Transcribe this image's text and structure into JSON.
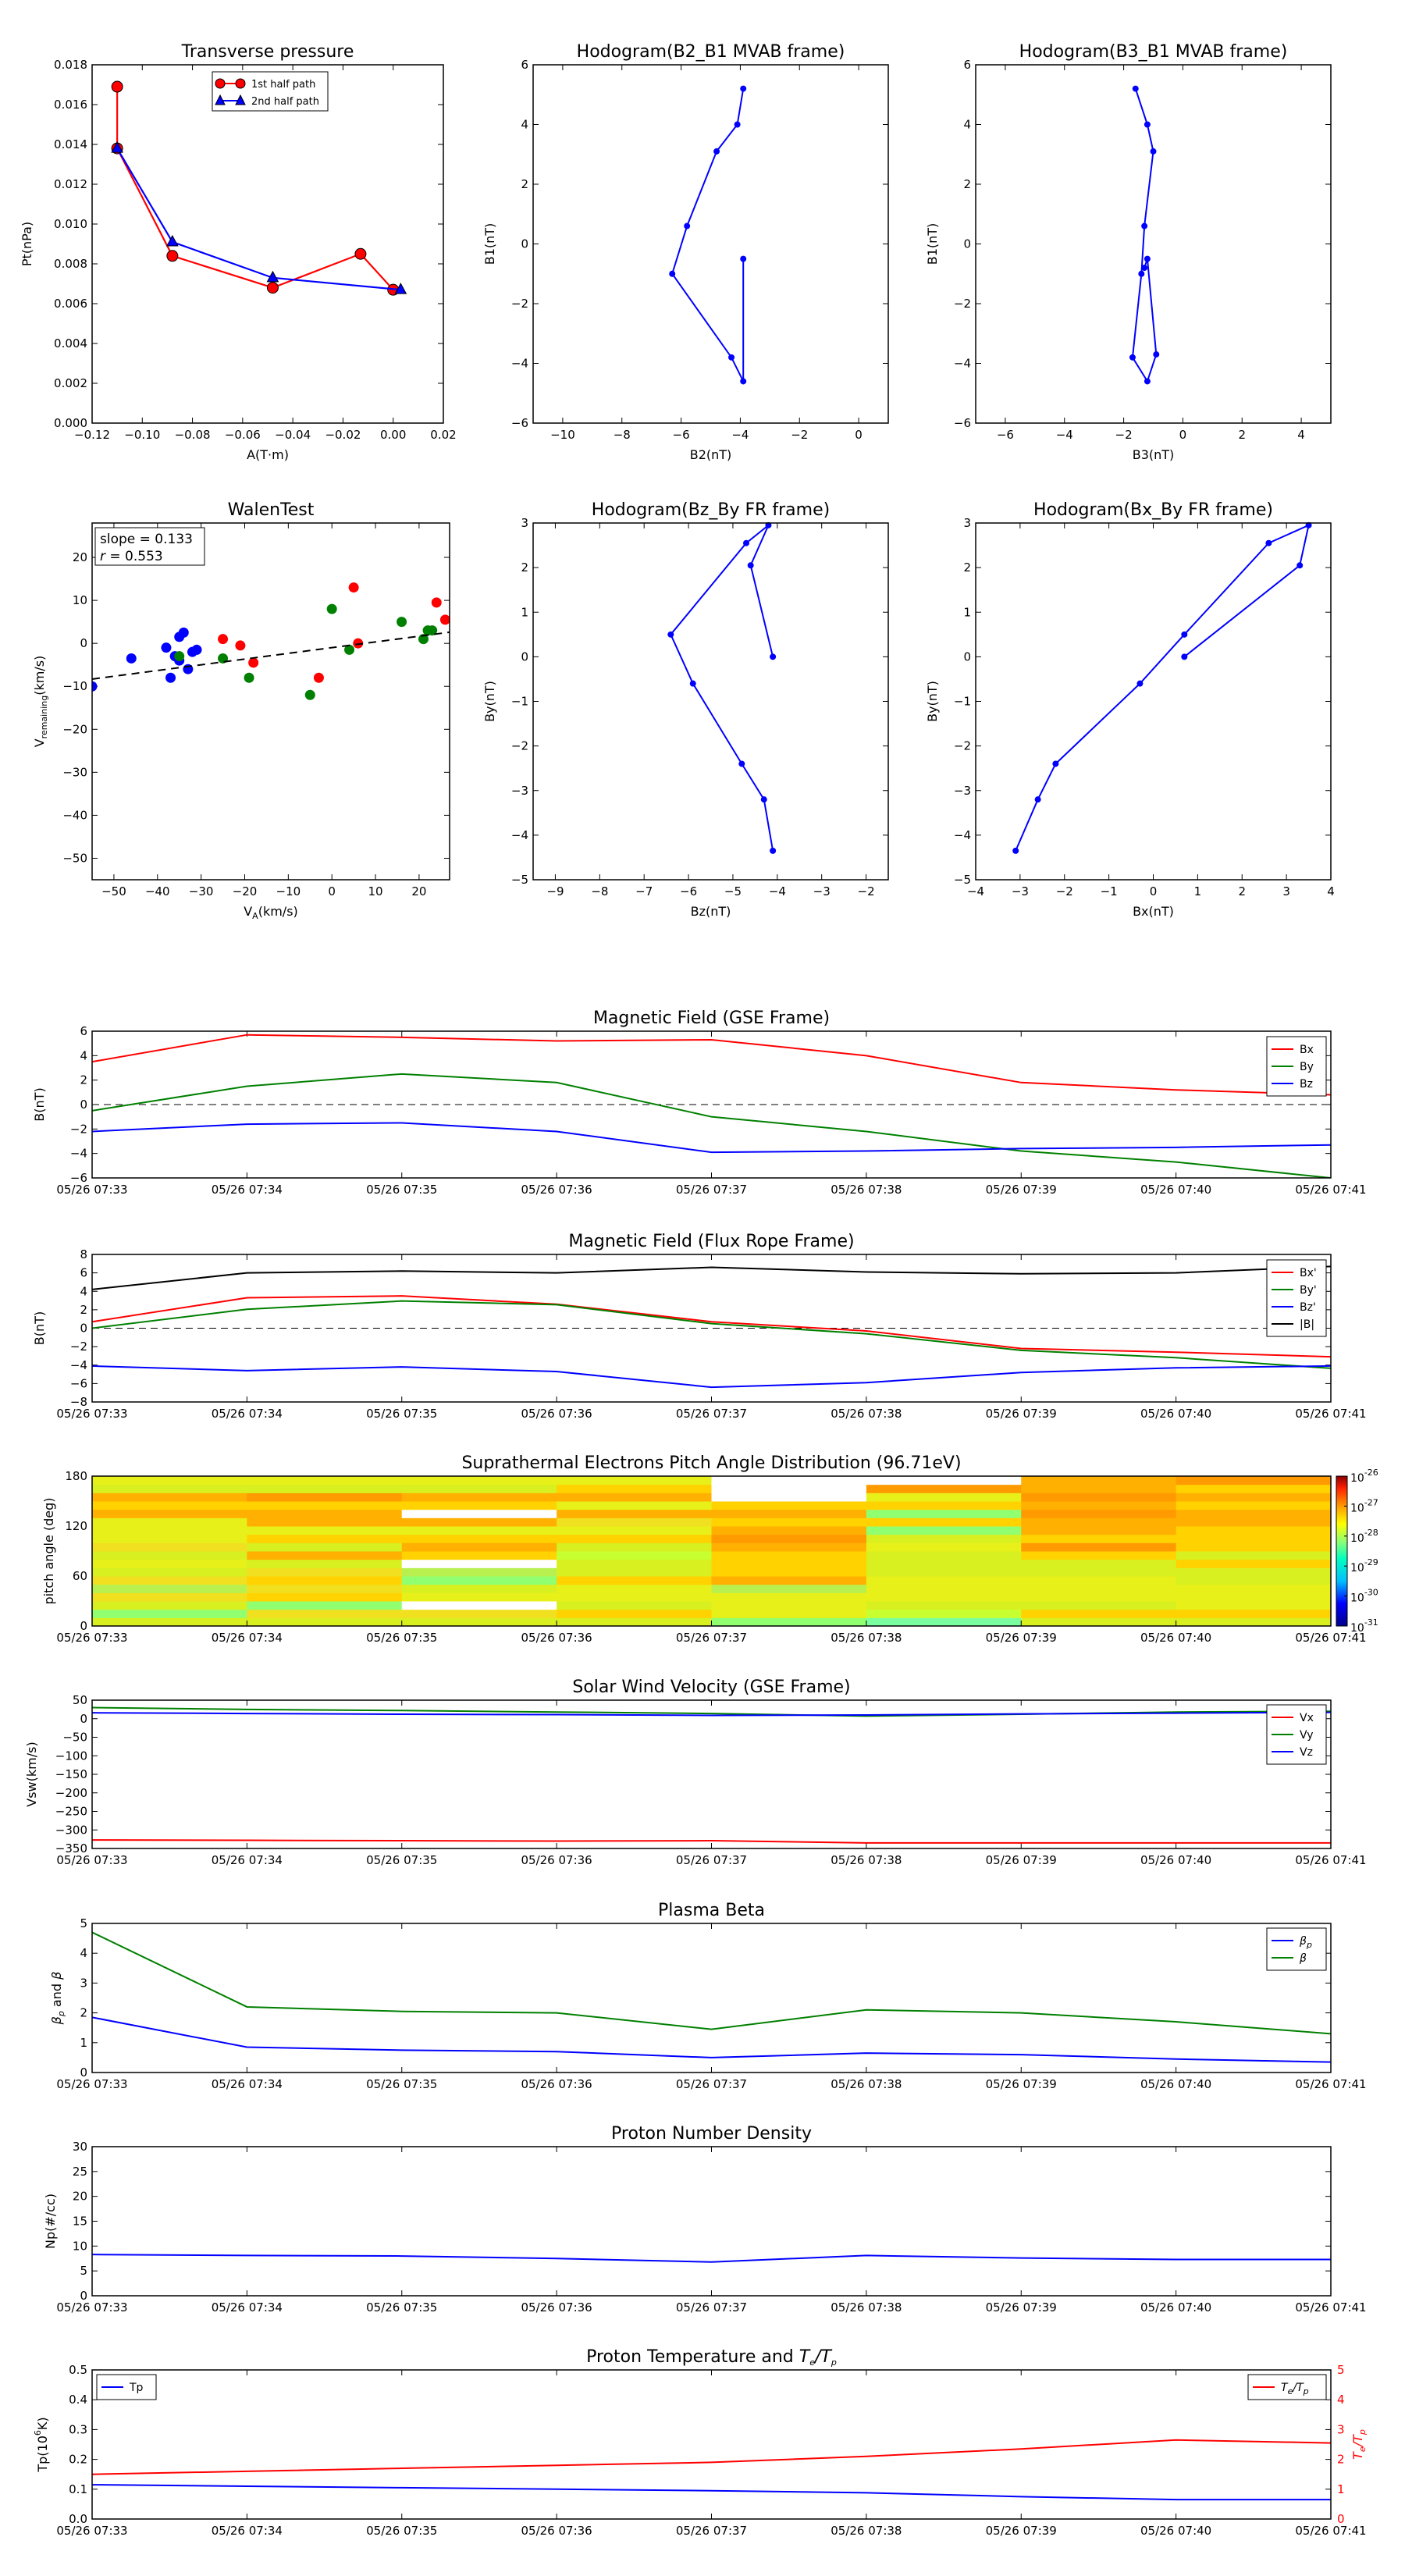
{
  "times": [
    "05/26 07:33",
    "05/26 07:34",
    "05/26 07:35",
    "05/26 07:36",
    "05/26 07:37",
    "05/26 07:38",
    "05/26 07:39",
    "05/26 07:40",
    "05/26 07:41"
  ],
  "colors": {
    "red": "#ff0000",
    "green": "#008000",
    "blue": "#0000ff",
    "black": "#000000"
  },
  "chart_data": [
    {
      "id": "transverse-pressure",
      "type": "line",
      "title": "Transverse pressure",
      "xlabel": "A(T·m)",
      "ylabel": "Pt(nPa)",
      "xlim": [
        -0.12,
        0.02
      ],
      "ylim": [
        0,
        0.018
      ],
      "xticks": [
        -0.12,
        -0.1,
        -0.08,
        -0.06,
        -0.04,
        -0.02,
        0.0,
        0.02
      ],
      "xtick_labels": [
        "−0.12",
        "−0.10",
        "−0.08",
        "−0.06",
        "−0.04",
        "−0.02",
        "0.00",
        "0.02"
      ],
      "yticks": [
        0,
        0.002,
        0.004,
        0.006,
        0.008,
        0.01,
        0.012,
        0.014,
        0.016,
        0.018
      ],
      "ytick_labels": [
        "0.000",
        "0.002",
        "0.004",
        "0.006",
        "0.008",
        "0.010",
        "0.012",
        "0.014",
        "0.016",
        "0.018"
      ],
      "legend": "top-center",
      "series": [
        {
          "name": "1st half path",
          "color": "#ff0000",
          "marker": "circle",
          "x": [
            0.0,
            -0.013,
            -0.048,
            -0.088,
            -0.11,
            -0.11
          ],
          "y": [
            0.0067,
            0.0085,
            0.0068,
            0.0084,
            0.0138,
            0.0169
          ]
        },
        {
          "name": "2nd half path",
          "color": "#0000ff",
          "marker": "triangle",
          "x": [
            -0.11,
            -0.088,
            -0.048,
            0.003
          ],
          "y": [
            0.0138,
            0.0091,
            0.0073,
            0.0067
          ]
        }
      ]
    },
    {
      "id": "hodogram-b2-b1",
      "type": "line",
      "title": "Hodogram(B2_B1 MVAB frame)",
      "xlabel": "B2(nT)",
      "ylabel": "B1(nT)",
      "xlim": [
        -11,
        1
      ],
      "ylim": [
        -6,
        6
      ],
      "xticks": [
        -10,
        -8,
        -6,
        -4,
        -2,
        0
      ],
      "xtick_labels": [
        "−10",
        "−8",
        "−6",
        "−4",
        "−2",
        "0"
      ],
      "yticks": [
        -6,
        -4,
        -2,
        0,
        2,
        4,
        6
      ],
      "ytick_labels": [
        "−6",
        "−4",
        "−2",
        "0",
        "2",
        "4",
        "6"
      ],
      "series": [
        {
          "color": "#0000ff",
          "marker": "dot",
          "x": [
            -3.9,
            -4.1,
            -4.8,
            -5.8,
            -6.3,
            -4.3,
            -3.9,
            -3.9
          ],
          "y": [
            5.2,
            4.0,
            3.1,
            0.6,
            -1.0,
            -3.8,
            -4.6,
            -0.5
          ]
        }
      ]
    },
    {
      "id": "hodogram-b3-b1",
      "type": "line",
      "title": "Hodogram(B3_B1 MVAB frame)",
      "xlabel": "B3(nT)",
      "ylabel": "B1(nT)",
      "xlim": [
        -7,
        5
      ],
      "ylim": [
        -6,
        6
      ],
      "xticks": [
        -6,
        -4,
        -2,
        0,
        2,
        4
      ],
      "xtick_labels": [
        "−6",
        "−4",
        "−2",
        "0",
        "2",
        "4"
      ],
      "yticks": [
        -6,
        -4,
        -2,
        0,
        2,
        4,
        6
      ],
      "ytick_labels": [
        "−6",
        "−4",
        "−2",
        "0",
        "2",
        "4",
        "6"
      ],
      "series": [
        {
          "color": "#0000ff",
          "marker": "dot",
          "x": [
            -1.6,
            -1.2,
            -1.0,
            -1.3,
            -1.4,
            -1.7,
            -1.2,
            -0.9,
            -1.2,
            -1.3
          ],
          "y": [
            5.2,
            4.0,
            3.1,
            0.6,
            -1.0,
            -3.8,
            -4.6,
            -3.7,
            -0.5,
            -0.8
          ]
        }
      ]
    },
    {
      "id": "walen-test",
      "type": "scatter",
      "title": "WalenTest",
      "xlabel": "V_A(km/s)",
      "ylabel": "V_remaining(km/s)",
      "annotation": [
        "slope = 0.133",
        "r = 0.553"
      ],
      "xlim": [
        -55,
        27
      ],
      "ylim": [
        -55,
        28
      ],
      "xticks": [
        -50,
        -40,
        -30,
        -20,
        -10,
        0,
        10,
        20
      ],
      "xtick_labels": [
        "−50",
        "−40",
        "−30",
        "−20",
        "−10",
        "0",
        "10",
        "20"
      ],
      "yticks": [
        -50,
        -40,
        -30,
        -20,
        -10,
        0,
        10,
        20
      ],
      "ytick_labels": [
        "−50",
        "−40",
        "−30",
        "−20",
        "−10",
        "0",
        "10",
        "20"
      ],
      "fit_line": {
        "slope": 0.133,
        "intercept": -1.0
      },
      "series": [
        {
          "color": "#0000ff",
          "x": [
            -55,
            -46,
            -38,
            -37,
            -36,
            -35,
            -34,
            -33,
            -32,
            -31,
            -35
          ],
          "y": [
            -10,
            -3.5,
            -1,
            -8,
            -3,
            1.5,
            2.5,
            -6,
            -2,
            -1.5,
            -4
          ]
        },
        {
          "color": "#008000",
          "x": [
            -35,
            -25,
            -19,
            -5,
            0,
            4,
            16,
            21,
            22,
            23
          ],
          "y": [
            -3,
            -3.5,
            -8,
            -12,
            8,
            -1.5,
            5,
            1,
            3,
            3
          ]
        },
        {
          "color": "#ff0000",
          "x": [
            -25,
            -21,
            -18,
            -3,
            5,
            6,
            24,
            26
          ],
          "y": [
            1,
            -0.5,
            -4.5,
            -8,
            13,
            0,
            9.5,
            5.5
          ]
        }
      ]
    },
    {
      "id": "hodogram-bz-by",
      "type": "line",
      "title": "Hodogram(Bz_By FR frame)",
      "xlabel": "Bz(nT)",
      "ylabel": "By(nT)",
      "xlim": [
        -9.5,
        -1.5
      ],
      "ylim": [
        -5,
        3
      ],
      "xticks": [
        -9,
        -8,
        -7,
        -6,
        -5,
        -4,
        -3,
        -2
      ],
      "xtick_labels": [
        "−9",
        "−8",
        "−7",
        "−6",
        "−5",
        "−4",
        "−3",
        "−2"
      ],
      "yticks": [
        -5,
        -4,
        -3,
        -2,
        -1,
        0,
        1,
        2,
        3
      ],
      "ytick_labels": [
        "−5",
        "−4",
        "−3",
        "−2",
        "−1",
        "0",
        "1",
        "2",
        "3"
      ],
      "series": [
        {
          "color": "#0000ff",
          "marker": "dot",
          "x": [
            -4.1,
            -4.6,
            -4.2,
            -4.7,
            -6.4,
            -5.9,
            -4.8,
            -4.3,
            -4.1
          ],
          "y": [
            0.0,
            2.05,
            2.95,
            2.55,
            0.5,
            -0.6,
            -2.4,
            -3.2,
            -4.35
          ]
        }
      ]
    },
    {
      "id": "hodogram-bx-by",
      "type": "line",
      "title": "Hodogram(Bx_By FR frame)",
      "xlabel": "Bx(nT)",
      "ylabel": "By(nT)",
      "xlim": [
        -4,
        4
      ],
      "ylim": [
        -5,
        3
      ],
      "xticks": [
        -4,
        -3,
        -2,
        -1,
        0,
        1,
        2,
        3,
        4
      ],
      "xtick_labels": [
        "−4",
        "−3",
        "−2",
        "−1",
        "0",
        "1",
        "2",
        "3",
        "4"
      ],
      "yticks": [
        -5,
        -4,
        -3,
        -2,
        -1,
        0,
        1,
        2,
        3
      ],
      "ytick_labels": [
        "−5",
        "−4",
        "−3",
        "−2",
        "−1",
        "0",
        "1",
        "2",
        "3"
      ],
      "series": [
        {
          "color": "#0000ff",
          "marker": "dot",
          "x": [
            0.7,
            3.3,
            3.5,
            2.6,
            0.7,
            -0.3,
            -2.2,
            -2.6,
            -3.1
          ],
          "y": [
            0.0,
            2.05,
            2.95,
            2.55,
            0.5,
            -0.6,
            -2.4,
            -3.2,
            -4.35
          ]
        }
      ]
    },
    {
      "id": "mag-gse",
      "type": "line",
      "title": "Magnetic Field (GSE Frame)",
      "ylabel": "B(nT)",
      "ylim": [
        -6,
        6
      ],
      "yticks": [
        -6,
        -4,
        -2,
        0,
        2,
        4,
        6
      ],
      "ytick_labels": [
        "−6",
        "−4",
        "−2",
        "0",
        "2",
        "4",
        "6"
      ],
      "zero_line": true,
      "legend": "top-right",
      "series": [
        {
          "name": "Bx",
          "color": "#ff0000",
          "values": [
            3.5,
            5.7,
            5.5,
            5.2,
            5.3,
            4.0,
            1.8,
            1.2,
            0.8
          ]
        },
        {
          "name": "By",
          "color": "#008000",
          "values": [
            -0.5,
            1.5,
            2.5,
            1.8,
            -1.0,
            -2.2,
            -3.8,
            -4.7,
            -6.0
          ]
        },
        {
          "name": "Bz",
          "color": "#0000ff",
          "values": [
            -2.2,
            -1.6,
            -1.5,
            -2.2,
            -3.9,
            -3.8,
            -3.6,
            -3.5,
            -3.3
          ]
        }
      ]
    },
    {
      "id": "mag-fr",
      "type": "line",
      "title": "Magnetic Field (Flux Rope Frame)",
      "ylabel": "B(nT)",
      "ylim": [
        -8,
        8
      ],
      "yticks": [
        -8,
        -6,
        -4,
        -2,
        0,
        2,
        4,
        6,
        8
      ],
      "ytick_labels": [
        "−8",
        "−6",
        "−4",
        "−2",
        "0",
        "2",
        "4",
        "6",
        "8"
      ],
      "zero_line": true,
      "legend": "top-right",
      "series": [
        {
          "name": "Bx'",
          "color": "#ff0000",
          "values": [
            0.7,
            3.3,
            3.5,
            2.6,
            0.7,
            -0.3,
            -2.2,
            -2.6,
            -3.1
          ]
        },
        {
          "name": "By'",
          "color": "#008000",
          "values": [
            0.0,
            2.05,
            2.95,
            2.55,
            0.5,
            -0.6,
            -2.4,
            -3.2,
            -4.35
          ]
        },
        {
          "name": "Bz'",
          "color": "#0000ff",
          "values": [
            -4.1,
            -4.6,
            -4.2,
            -4.7,
            -6.4,
            -5.9,
            -4.8,
            -4.3,
            -4.1
          ]
        },
        {
          "name": "|B|",
          "color": "#000000",
          "values": [
            4.2,
            6.0,
            6.2,
            6.0,
            6.6,
            6.1,
            5.9,
            6.0,
            6.7
          ]
        }
      ]
    },
    {
      "id": "pad",
      "type": "heatmap",
      "title": "Suprathermal Electrons Pitch Angle Distribution (96.71eV)",
      "ylabel": "pitch angle (deg)",
      "ylim": [
        0,
        180
      ],
      "yticks": [
        0,
        60,
        120,
        180
      ],
      "ytick_labels": [
        "0",
        "60",
        "120",
        "180"
      ],
      "colorbar": {
        "ticks": [
          "10^-26",
          "10^-27",
          "10^-28",
          "10^-29",
          "10^-30",
          "10^-31"
        ]
      }
    },
    {
      "id": "sw-velocity",
      "type": "line",
      "title": "Solar Wind Velocity (GSE Frame)",
      "ylabel": "Vsw(km/s)",
      "ylim": [
        -350,
        50
      ],
      "yticks": [
        -350,
        -300,
        -250,
        -200,
        -150,
        -100,
        -50,
        0,
        50
      ],
      "ytick_labels": [
        "−350",
        "−300",
        "−250",
        "−200",
        "−150",
        "−100",
        "−50",
        "0",
        "50"
      ],
      "legend": "top-right",
      "series": [
        {
          "name": "Vx",
          "color": "#ff0000",
          "values": [
            -327,
            -328,
            -329,
            -330,
            -329,
            -335,
            -335,
            -335,
            -335
          ]
        },
        {
          "name": "Vy",
          "color": "#008000",
          "values": [
            30,
            25,
            22,
            18,
            14,
            7,
            12,
            18,
            20
          ]
        },
        {
          "name": "Vz",
          "color": "#0000ff",
          "values": [
            16,
            14,
            12,
            11,
            9,
            10,
            13,
            15,
            17
          ]
        }
      ]
    },
    {
      "id": "plasma-beta",
      "type": "line",
      "title": "Plasma Beta",
      "ylabel": "β_p and β",
      "ylim": [
        0,
        5
      ],
      "yticks": [
        0,
        1,
        2,
        3,
        4,
        5
      ],
      "ytick_labels": [
        "0",
        "1",
        "2",
        "3",
        "4",
        "5"
      ],
      "legend": "top-right",
      "series": [
        {
          "name": "β_p",
          "color": "#0000ff",
          "values": [
            1.85,
            0.85,
            0.75,
            0.7,
            0.5,
            0.65,
            0.6,
            0.45,
            0.35
          ]
        },
        {
          "name": "β",
          "color": "#008000",
          "values": [
            4.7,
            2.2,
            2.05,
            2.0,
            1.45,
            2.1,
            2.0,
            1.7,
            1.3
          ]
        }
      ]
    },
    {
      "id": "proton-density",
      "type": "line",
      "title": "Proton Number Density",
      "ylabel": "Np(#/cc)",
      "ylim": [
        0,
        30
      ],
      "yticks": [
        0,
        5,
        10,
        15,
        20,
        25,
        30
      ],
      "ytick_labels": [
        "0",
        "5",
        "10",
        "15",
        "20",
        "25",
        "30"
      ],
      "series": [
        {
          "color": "#0000ff",
          "values": [
            8.3,
            8.1,
            8.0,
            7.5,
            6.8,
            8.1,
            7.6,
            7.3,
            7.3
          ]
        }
      ]
    },
    {
      "id": "proton-temp",
      "type": "line",
      "title": "Proton Temperature and T_e/T_p",
      "ylabel": "Tp(10^6K)",
      "ylabel_right": "T_e/T_p",
      "ylim": [
        0,
        0.5
      ],
      "yticks": [
        0,
        0.1,
        0.2,
        0.3,
        0.4,
        0.5
      ],
      "ytick_labels": [
        "0.0",
        "0.1",
        "0.2",
        "0.3",
        "0.4",
        "0.5"
      ],
      "ylim_right": [
        0,
        5
      ],
      "yticks_right": [
        0,
        1,
        2,
        3,
        4,
        5
      ],
      "ytick_labels_right": [
        "0",
        "1",
        "2",
        "3",
        "4",
        "5"
      ],
      "legend": "top-left",
      "series": [
        {
          "name": "Tp",
          "color": "#0000ff",
          "values": [
            0.115,
            0.11,
            0.105,
            0.1,
            0.095,
            0.088,
            0.075,
            0.065,
            0.065
          ]
        },
        {
          "name": "T_e/T_p",
          "color": "#ff0000",
          "axis": "right",
          "values": [
            1.5,
            1.6,
            1.7,
            1.8,
            1.9,
            2.1,
            2.35,
            2.65,
            2.55
          ]
        }
      ]
    }
  ]
}
